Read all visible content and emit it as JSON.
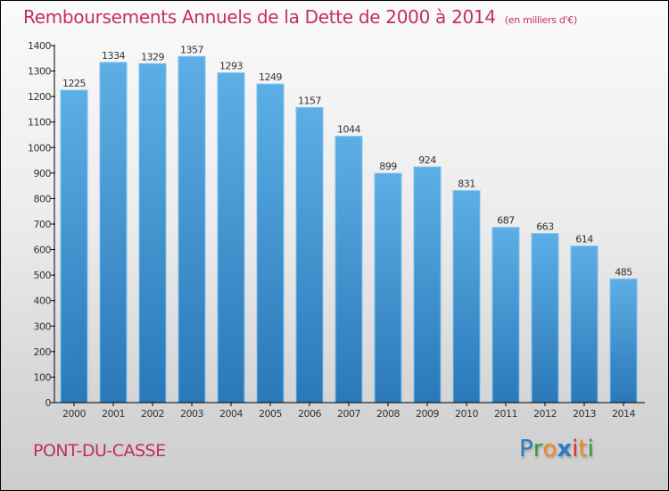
{
  "header": {
    "title": "Remboursements Annuels de la Dette de 2000 à 2014",
    "unit": "(en milliers d'€)"
  },
  "footer": {
    "city": "PONT-DU-CASSE",
    "logo": {
      "letters": [
        {
          "ch": "P",
          "color": "#2a7dc9"
        },
        {
          "ch": "r",
          "color": "#2e9a3a"
        },
        {
          "ch": "o",
          "color": "#f08a1c"
        },
        {
          "ch": "x",
          "color": "#2a7dc9"
        },
        {
          "ch": "i",
          "color": "#e0301e"
        },
        {
          "ch": "t",
          "color": "#f08a1c"
        },
        {
          "ch": "i",
          "color": "#2e9a3a"
        }
      ]
    }
  },
  "colors": {
    "title": "#c2305c",
    "bar_top": "#5daee6",
    "bar_bottom": "#2a78b8",
    "bar_edge": "#7cc3f0",
    "axis": "#000000"
  },
  "chart_data": {
    "type": "bar",
    "title": "Remboursements Annuels de la Dette de 2000 à 2014",
    "subtitle": "(en milliers d'€)",
    "xlabel": "",
    "ylabel": "",
    "categories": [
      "2000",
      "2001",
      "2002",
      "2003",
      "2004",
      "2005",
      "2006",
      "2007",
      "2008",
      "2009",
      "2010",
      "2011",
      "2012",
      "2013",
      "2014"
    ],
    "values": [
      1225,
      1334,
      1329,
      1357,
      1293,
      1249,
      1157,
      1044,
      899,
      924,
      831,
      687,
      663,
      614,
      485
    ],
    "ylim": [
      0,
      1400
    ],
    "yticks": [
      0,
      100,
      200,
      300,
      400,
      500,
      600,
      700,
      800,
      900,
      1000,
      1100,
      1200,
      1300,
      1400
    ],
    "grid": false,
    "legend": "none",
    "data_labels": true
  }
}
